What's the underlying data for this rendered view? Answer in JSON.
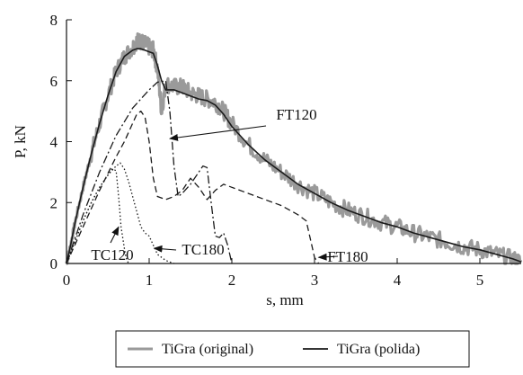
{
  "chart_data": {
    "type": "line",
    "xlabel": "s, mm",
    "ylabel": "P, kN",
    "xlim": [
      0,
      5.5
    ],
    "ylim": [
      0,
      8
    ],
    "xticks": [
      0,
      1,
      2,
      3,
      4,
      5
    ],
    "yticks": [
      0,
      2,
      4,
      6,
      8
    ],
    "grid": false,
    "legend_position": "bottom",
    "legend": [
      {
        "label": "TiGra (original)",
        "color": "#9a9a9a",
        "style": "solid"
      },
      {
        "label": "TiGra (polida)",
        "color": "#1a1a1a",
        "style": "solid"
      }
    ],
    "series": [
      {
        "name": "TiGra (original)",
        "color": "#9a9a9a",
        "style": "noisy",
        "x": [
          0,
          0.05,
          0.1,
          0.2,
          0.3,
          0.4,
          0.5,
          0.6,
          0.7,
          0.8,
          0.85,
          0.9,
          0.95,
          1.0,
          1.05,
          1.1,
          1.15,
          1.2,
          1.3,
          1.4,
          1.5,
          1.6,
          1.7,
          1.8,
          1.9,
          2.0,
          2.2,
          2.4,
          2.6,
          2.8,
          3.0,
          3.2,
          3.4,
          3.6,
          3.8,
          4.0,
          4.2,
          4.4,
          4.6,
          4.8,
          5.0,
          5.2,
          5.4,
          5.5
        ],
        "y": [
          0,
          0.6,
          1.3,
          2.5,
          3.6,
          4.6,
          5.5,
          6.3,
          6.8,
          7.1,
          7.3,
          7.3,
          7.2,
          7.1,
          7.0,
          6.4,
          5.0,
          5.9,
          5.8,
          5.8,
          5.6,
          5.5,
          5.4,
          5.3,
          5.0,
          4.6,
          3.9,
          3.4,
          3.0,
          2.6,
          2.3,
          2.0,
          1.75,
          1.55,
          1.35,
          1.2,
          1.0,
          0.85,
          0.7,
          0.55,
          0.45,
          0.3,
          0.15,
          0.05
        ]
      },
      {
        "name": "TiGra (polida)",
        "color": "#1a1a1a",
        "style": "solid",
        "x": [
          0,
          0.05,
          0.1,
          0.2,
          0.3,
          0.4,
          0.5,
          0.6,
          0.7,
          0.8,
          0.85,
          0.9,
          0.95,
          1.0,
          1.05,
          1.1,
          1.15,
          1.2,
          1.3,
          1.4,
          1.5,
          1.6,
          1.7,
          1.8,
          1.9,
          2.0,
          2.2,
          2.4,
          2.6,
          2.8,
          3.0,
          3.2,
          3.4,
          3.6,
          3.8,
          4.0,
          4.2,
          4.4,
          4.6,
          4.8,
          5.0,
          5.2,
          5.4,
          5.5
        ],
        "y": [
          0,
          0.6,
          1.3,
          2.5,
          3.6,
          4.6,
          5.5,
          6.3,
          6.8,
          7.0,
          7.05,
          7.05,
          7.0,
          6.95,
          6.9,
          6.5,
          6.0,
          5.7,
          5.7,
          5.6,
          5.5,
          5.4,
          5.35,
          5.2,
          4.9,
          4.5,
          3.9,
          3.4,
          3.0,
          2.6,
          2.3,
          2.0,
          1.75,
          1.55,
          1.35,
          1.2,
          1.0,
          0.85,
          0.7,
          0.55,
          0.45,
          0.3,
          0.15,
          0.05
        ]
      },
      {
        "name": "TC120",
        "color": "#1a1a1a",
        "style": "dotted",
        "x": [
          0,
          0.1,
          0.2,
          0.3,
          0.4,
          0.5,
          0.55,
          0.6,
          0.63,
          0.66,
          0.7,
          0.72,
          0.75
        ],
        "y": [
          0,
          0.7,
          1.4,
          2.0,
          2.5,
          2.9,
          3.1,
          3.05,
          2.2,
          1.2,
          0.5,
          0.2,
          0
        ]
      },
      {
        "name": "TC180",
        "color": "#1a1a1a",
        "style": "dotted",
        "x": [
          0,
          0.1,
          0.2,
          0.3,
          0.4,
          0.5,
          0.6,
          0.65,
          0.7,
          0.75,
          0.8,
          0.85,
          0.9,
          0.95,
          1.0,
          1.05,
          1.1,
          1.2,
          1.3
        ],
        "y": [
          0,
          0.7,
          1.4,
          2.0,
          2.5,
          2.9,
          3.2,
          3.3,
          3.1,
          2.7,
          2.2,
          1.7,
          1.2,
          1.0,
          0.9,
          0.6,
          0.3,
          0.1,
          0
        ]
      },
      {
        "name": "FT120",
        "color": "#1a1a1a",
        "style": "dashdot",
        "x": [
          0,
          0.2,
          0.4,
          0.6,
          0.8,
          1.0,
          1.1,
          1.2,
          1.25,
          1.3,
          1.35,
          1.4,
          1.5,
          1.6,
          1.65,
          1.7,
          1.75,
          1.8,
          1.85,
          1.9,
          1.95,
          2.0
        ],
        "y": [
          0,
          1.6,
          3.0,
          4.2,
          5.1,
          5.7,
          5.95,
          6.0,
          5.0,
          3.2,
          2.2,
          2.3,
          2.6,
          3.0,
          3.2,
          3.15,
          2.0,
          0.9,
          0.85,
          1.0,
          0.6,
          0
        ]
      },
      {
        "name": "FT180",
        "color": "#1a1a1a",
        "style": "dashed",
        "x": [
          0,
          0.2,
          0.4,
          0.6,
          0.7,
          0.8,
          0.85,
          0.9,
          0.95,
          1.0,
          1.05,
          1.1,
          1.2,
          1.3,
          1.4,
          1.5,
          1.6,
          1.7,
          1.8,
          1.9,
          2.0,
          2.2,
          2.4,
          2.6,
          2.8,
          2.9,
          2.95,
          3.0,
          3.05
        ],
        "y": [
          0,
          1.2,
          2.4,
          3.5,
          4.0,
          4.6,
          4.9,
          5.0,
          4.8,
          4.0,
          2.8,
          2.2,
          2.1,
          2.2,
          2.4,
          2.8,
          2.5,
          2.1,
          2.4,
          2.6,
          2.5,
          2.3,
          2.1,
          1.9,
          1.6,
          1.4,
          0.8,
          0.2,
          0
        ]
      }
    ],
    "annotations": [
      {
        "text": "FT120",
        "points_to": [
          1.25,
          4.1
        ]
      },
      {
        "text": "TC120",
        "points_to": [
          0.63,
          1.2
        ]
      },
      {
        "text": "TC180",
        "points_to": [
          1.06,
          0.5
        ]
      },
      {
        "text": "FT180",
        "points_to": [
          3.05,
          0.2
        ]
      }
    ]
  }
}
